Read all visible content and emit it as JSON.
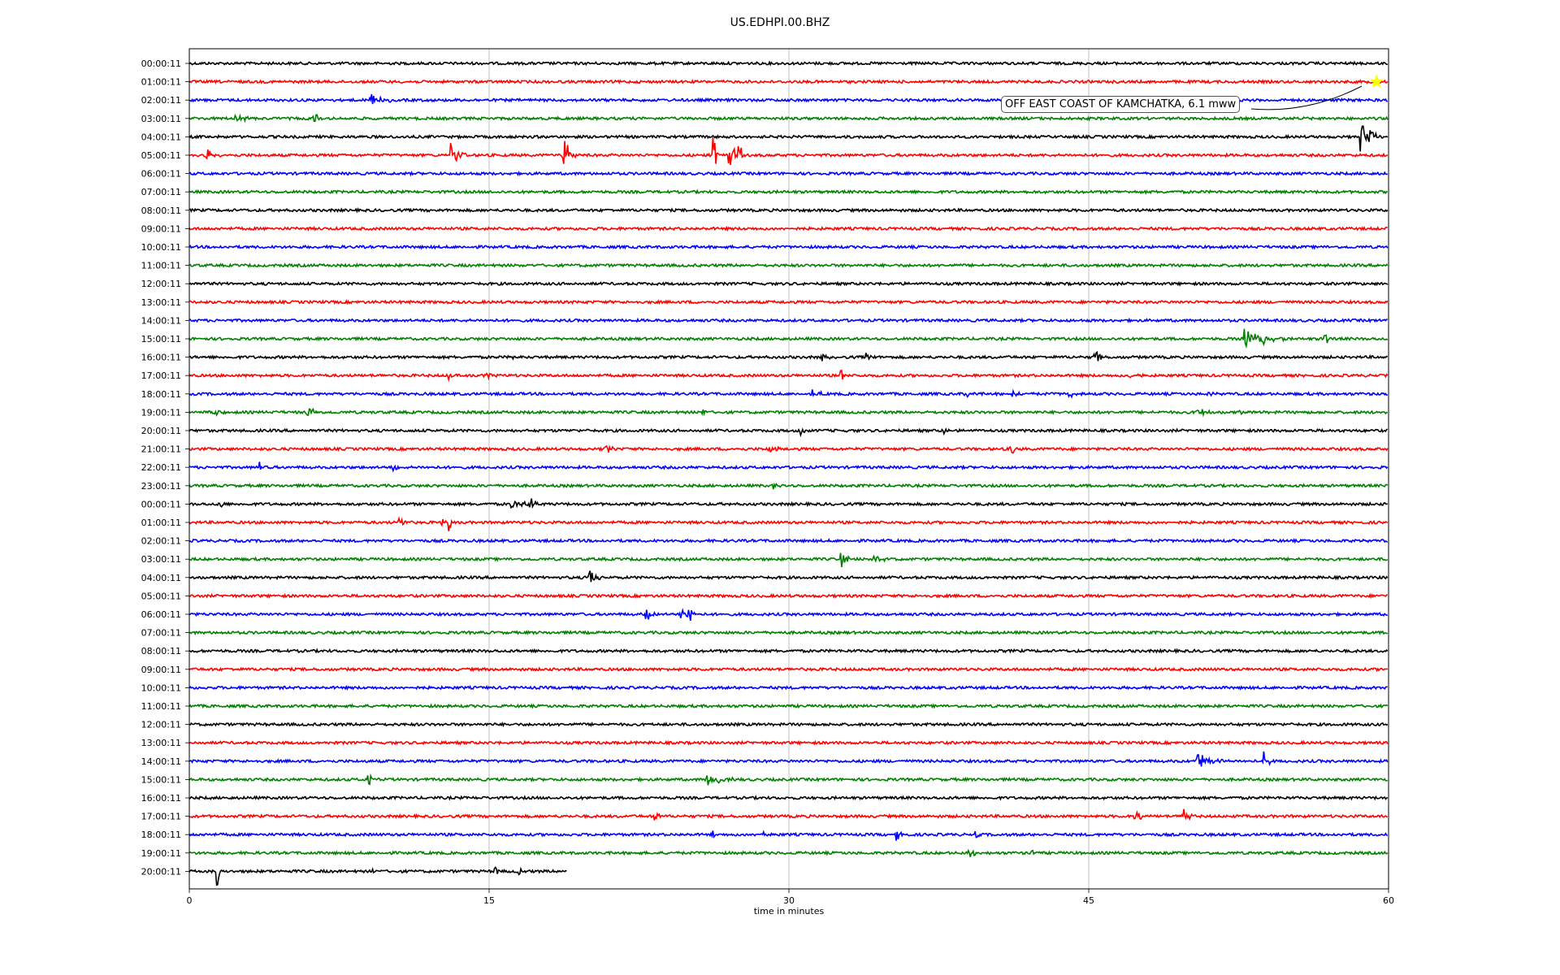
{
  "chart_data": {
    "type": "line",
    "title": "US.EDHPI.00.BHZ",
    "xlabel": "time in minutes",
    "ylabel": "",
    "xlim": [
      0,
      60
    ],
    "x_ticks": [
      "0",
      "15",
      "30",
      "45",
      "60"
    ],
    "grid": "vertical lines at 15, 30, 45",
    "row_labels": [
      "00:00:11",
      "01:00:11",
      "02:00:11",
      "03:00:11",
      "04:00:11",
      "05:00:11",
      "06:00:11",
      "07:00:11",
      "08:00:11",
      "09:00:11",
      "10:00:11",
      "11:00:11",
      "12:00:11",
      "13:00:11",
      "14:00:11",
      "15:00:11",
      "16:00:11",
      "17:00:11",
      "18:00:11",
      "19:00:11",
      "20:00:11",
      "21:00:11",
      "22:00:11",
      "23:00:11",
      "00:00:11",
      "01:00:11",
      "02:00:11",
      "03:00:11",
      "04:00:11",
      "05:00:11",
      "06:00:11",
      "07:00:11",
      "08:00:11",
      "09:00:11",
      "10:00:11",
      "11:00:11",
      "12:00:11",
      "13:00:11",
      "14:00:11",
      "15:00:11",
      "16:00:11",
      "17:00:11",
      "18:00:11",
      "19:00:11",
      "20:00:11"
    ],
    "trace_colors": [
      "#000000",
      "#ff0000",
      "#0000ff",
      "#008000"
    ],
    "last_row_end_minute": 18.9,
    "event": {
      "label": "OFF EAST COAST OF KAMCHATKA, 6.1 mww",
      "row": 1,
      "minute": 59.4,
      "marker": "star",
      "marker_color": "#ffff00"
    },
    "bursts": [
      {
        "row": 2,
        "minute": 9.0,
        "amp": 0.5,
        "dur": 1.2
      },
      {
        "row": 3,
        "minute": 2.3,
        "amp": 0.35,
        "dur": 0.8
      },
      {
        "row": 3,
        "minute": 6.2,
        "amp": 0.35,
        "dur": 0.8
      },
      {
        "row": 4,
        "minute": 58.6,
        "amp": 1.0,
        "dur": 1.2
      },
      {
        "row": 5,
        "minute": 0.8,
        "amp": 0.5,
        "dur": 0.8
      },
      {
        "row": 5,
        "minute": 13.1,
        "amp": 0.9,
        "dur": 0.8
      },
      {
        "row": 5,
        "minute": 18.7,
        "amp": 1.6,
        "dur": 0.3
      },
      {
        "row": 5,
        "minute": 18.9,
        "amp": 0.8,
        "dur": 0.6
      },
      {
        "row": 5,
        "minute": 26.2,
        "amp": 2.0,
        "dur": 0.3
      },
      {
        "row": 5,
        "minute": 27.0,
        "amp": 0.9,
        "dur": 0.8
      },
      {
        "row": 5,
        "minute": 27.4,
        "amp": 1.8,
        "dur": 0.3
      },
      {
        "row": 15,
        "minute": 52.8,
        "amp": 0.8,
        "dur": 2.0
      },
      {
        "row": 15,
        "minute": 53.7,
        "amp": 1.0,
        "dur": 0.3
      },
      {
        "row": 15,
        "minute": 56.8,
        "amp": 0.6,
        "dur": 0.4
      },
      {
        "row": 16,
        "minute": 16.2,
        "amp": 0.3,
        "dur": 0.4
      },
      {
        "row": 16,
        "minute": 31.7,
        "amp": 0.35,
        "dur": 0.6
      },
      {
        "row": 16,
        "minute": 33.9,
        "amp": 0.45,
        "dur": 0.4
      },
      {
        "row": 16,
        "minute": 45.3,
        "amp": 0.45,
        "dur": 0.5
      },
      {
        "row": 17,
        "minute": 13.0,
        "amp": 0.3,
        "dur": 0.4
      },
      {
        "row": 17,
        "minute": 14.9,
        "amp": 0.3,
        "dur": 0.6
      },
      {
        "row": 17,
        "minute": 32.6,
        "amp": 0.6,
        "dur": 0.3
      },
      {
        "row": 17,
        "minute": 47.1,
        "amp": 0.3,
        "dur": 0.5
      },
      {
        "row": 18,
        "minute": 31.2,
        "amp": 0.3,
        "dur": 0.5
      },
      {
        "row": 18,
        "minute": 38.8,
        "amp": 0.4,
        "dur": 0.6
      },
      {
        "row": 18,
        "minute": 41.2,
        "amp": 0.35,
        "dur": 0.4
      },
      {
        "row": 18,
        "minute": 44.0,
        "amp": 0.35,
        "dur": 0.3
      },
      {
        "row": 18,
        "minute": 50.9,
        "amp": 0.3,
        "dur": 0.4
      },
      {
        "row": 19,
        "minute": 1.3,
        "amp": 0.35,
        "dur": 0.5
      },
      {
        "row": 19,
        "minute": 5.9,
        "amp": 0.35,
        "dur": 0.7
      },
      {
        "row": 19,
        "minute": 25.7,
        "amp": 0.3,
        "dur": 0.3
      },
      {
        "row": 19,
        "minute": 50.4,
        "amp": 0.35,
        "dur": 0.8
      },
      {
        "row": 19,
        "minute": 52.4,
        "amp": 0.4,
        "dur": 0.5
      },
      {
        "row": 20,
        "minute": 30.6,
        "amp": 0.3,
        "dur": 0.8
      },
      {
        "row": 20,
        "minute": 37.8,
        "amp": 0.35,
        "dur": 0.6
      },
      {
        "row": 21,
        "minute": 20.8,
        "amp": 0.35,
        "dur": 0.6
      },
      {
        "row": 21,
        "minute": 29.0,
        "amp": 0.3,
        "dur": 0.6
      },
      {
        "row": 21,
        "minute": 41.1,
        "amp": 0.5,
        "dur": 0.3
      },
      {
        "row": 22,
        "minute": 3.5,
        "amp": 0.5,
        "dur": 0.5
      },
      {
        "row": 22,
        "minute": 10.2,
        "amp": 0.45,
        "dur": 0.6
      },
      {
        "row": 23,
        "minute": 29.1,
        "amp": 0.35,
        "dur": 0.6
      },
      {
        "row": 24,
        "minute": 1.6,
        "amp": 0.3,
        "dur": 0.3
      },
      {
        "row": 24,
        "minute": 16.1,
        "amp": 0.6,
        "dur": 1.0
      },
      {
        "row": 24,
        "minute": 17.0,
        "amp": 0.5,
        "dur": 0.5
      },
      {
        "row": 25,
        "minute": 10.5,
        "amp": 0.35,
        "dur": 0.5
      },
      {
        "row": 25,
        "minute": 12.6,
        "amp": 0.4,
        "dur": 0.8
      },
      {
        "row": 25,
        "minute": 13.0,
        "amp": 0.7,
        "dur": 0.3
      },
      {
        "row": 27,
        "minute": 32.6,
        "amp": 0.55,
        "dur": 0.8
      },
      {
        "row": 27,
        "minute": 34.2,
        "amp": 0.4,
        "dur": 0.8
      },
      {
        "row": 28,
        "minute": 20.0,
        "amp": 0.7,
        "dur": 0.6
      },
      {
        "row": 30,
        "minute": 22.8,
        "amp": 0.5,
        "dur": 0.8
      },
      {
        "row": 30,
        "minute": 24.6,
        "amp": 0.6,
        "dur": 0.8
      },
      {
        "row": 30,
        "minute": 25.0,
        "amp": 0.9,
        "dur": 0.3
      },
      {
        "row": 39,
        "minute": 8.9,
        "amp": 0.5,
        "dur": 0.8
      },
      {
        "row": 39,
        "minute": 25.9,
        "amp": 0.5,
        "dur": 1.5
      },
      {
        "row": 41,
        "minute": 23.3,
        "amp": 0.4,
        "dur": 0.5
      },
      {
        "row": 41,
        "minute": 47.3,
        "amp": 0.5,
        "dur": 0.7
      },
      {
        "row": 41,
        "minute": 49.7,
        "amp": 0.6,
        "dur": 0.5
      },
      {
        "row": 42,
        "minute": 26.2,
        "amp": 0.5,
        "dur": 0.3
      },
      {
        "row": 42,
        "minute": 28.6,
        "amp": 0.4,
        "dur": 0.6
      },
      {
        "row": 42,
        "minute": 35.4,
        "amp": 0.35,
        "dur": 0.4
      },
      {
        "row": 42,
        "minute": 39.3,
        "amp": 0.3,
        "dur": 0.3
      },
      {
        "row": 38,
        "minute": 50.4,
        "amp": 0.6,
        "dur": 1.5
      },
      {
        "row": 38,
        "minute": 53.8,
        "amp": 0.7,
        "dur": 0.3
      },
      {
        "row": 43,
        "minute": 39.0,
        "amp": 0.3,
        "dur": 0.6
      },
      {
        "row": 43,
        "minute": 42.1,
        "amp": 0.4,
        "dur": 0.4
      },
      {
        "row": 44,
        "minute": 1.4,
        "amp": 1.2,
        "dur": 0.2
      },
      {
        "row": 44,
        "minute": 9.1,
        "amp": 0.4,
        "dur": 0.4
      },
      {
        "row": 44,
        "minute": 15.3,
        "amp": 0.5,
        "dur": 0.3
      },
      {
        "row": 44,
        "minute": 16.5,
        "amp": 0.5,
        "dur": 0.3
      }
    ]
  }
}
